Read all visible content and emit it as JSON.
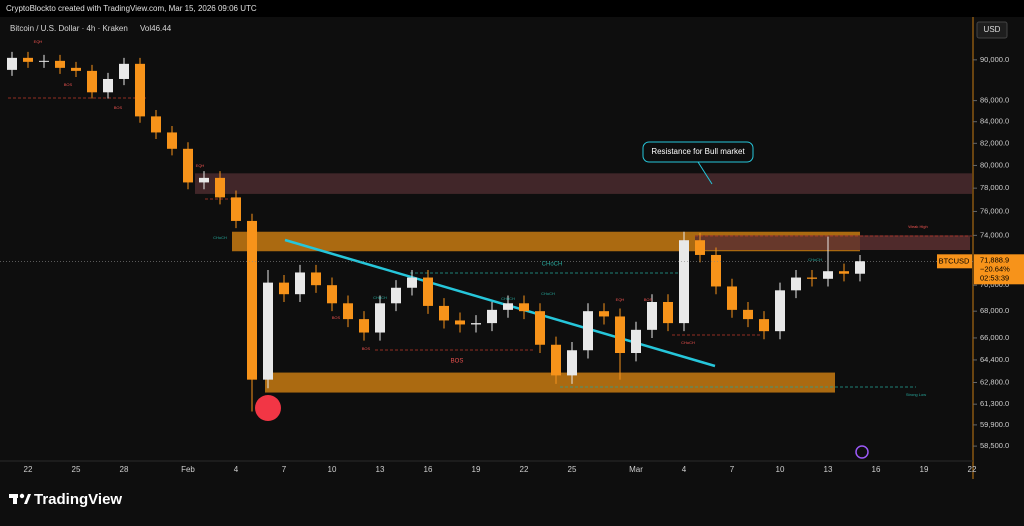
{
  "header": {
    "credit": "CryptoBlockto created with TradingView.com, Mar 15, 2026 09:06 UTC",
    "logo": "TradingView"
  },
  "chart_data": {
    "type": "candlestick",
    "title": "Bitcoin / U.S. Dollar · 4h · Kraken",
    "volume_label": "Vol46.44",
    "currency": "USD",
    "log_scale": true,
    "up_color": "#e8e8e8",
    "down_color": "#f7931a",
    "categories": [
      null,
      "22",
      null,
      null,
      "25",
      null,
      null,
      "28",
      null,
      null,
      null,
      "Feb",
      null,
      null,
      "4",
      null,
      null,
      "7",
      null,
      null,
      "10",
      null,
      null,
      "13",
      null,
      null,
      "16",
      null,
      null,
      "19",
      null,
      null,
      "22",
      null,
      null,
      "25",
      null,
      null,
      null,
      "Mar",
      null,
      null,
      "4",
      null,
      null,
      "7",
      null,
      null,
      "10",
      null,
      null,
      "13",
      null,
      null,
      "16",
      null,
      null,
      "19",
      null,
      null,
      "22"
    ],
    "open": [
      89000,
      90200,
      89800,
      89900,
      89200,
      88900,
      86800,
      88100,
      89600,
      84500,
      83000,
      81500,
      78500,
      78900,
      77200,
      75200,
      63000,
      70200,
      69300,
      71000,
      70000,
      68600,
      67400,
      66400,
      68600,
      69800,
      70600,
      68400,
      67300,
      67000,
      67100,
      68100,
      68600,
      68000,
      65500,
      63300,
      65100,
      68000,
      67600,
      64900,
      66600,
      68700,
      67100,
      73600,
      72400,
      69900,
      68100,
      67400,
      66500,
      69600,
      70600,
      70500,
      71100,
      70900,
      null,
      null,
      null,
      null,
      null,
      null,
      null
    ],
    "high": [
      90800,
      90800,
      90500,
      90500,
      89800,
      89500,
      88700,
      90200,
      90200,
      85100,
      83600,
      82100,
      79500,
      79500,
      77800,
      75800,
      71200,
      70800,
      71600,
      71600,
      70600,
      69200,
      68000,
      69200,
      70400,
      71200,
      71200,
      69000,
      67900,
      67700,
      68700,
      69200,
      69200,
      68600,
      66100,
      65700,
      68600,
      68600,
      68200,
      67200,
      69300,
      69300,
      74300,
      74200,
      73000,
      70500,
      68700,
      68000,
      70200,
      71200,
      71200,
      73900,
      71700,
      72400,
      null,
      null,
      null,
      null,
      null,
      null,
      null
    ],
    "low": [
      88400,
      89200,
      89200,
      88600,
      88300,
      86200,
      86200,
      87500,
      83900,
      82400,
      80900,
      77900,
      77900,
      76600,
      74600,
      60800,
      62400,
      68700,
      68700,
      69400,
      68000,
      66800,
      65800,
      65800,
      68000,
      69200,
      67800,
      66700,
      66400,
      66400,
      66500,
      67500,
      67400,
      64900,
      62700,
      62700,
      64500,
      67000,
      63000,
      64300,
      66000,
      66500,
      66500,
      71800,
      69300,
      67500,
      66800,
      65900,
      65900,
      69000,
      69900,
      69900,
      70300,
      70300,
      null,
      null,
      null,
      null,
      null,
      null,
      null
    ],
    "close": [
      90200,
      89800,
      89900,
      89200,
      88900,
      86800,
      88100,
      89600,
      84500,
      83000,
      81500,
      78500,
      78900,
      77200,
      75200,
      63000,
      70200,
      69300,
      71000,
      70000,
      68600,
      67400,
      66400,
      68600,
      69800,
      70600,
      68400,
      67300,
      67000,
      67100,
      68100,
      68600,
      68000,
      65500,
      63300,
      65100,
      68000,
      67600,
      64900,
      66600,
      68700,
      67100,
      73600,
      72400,
      69900,
      68100,
      67400,
      66500,
      69600,
      70600,
      70500,
      71100,
      70900,
      71900,
      null,
      null,
      null,
      null,
      null,
      null,
      null
    ],
    "ylim": [
      57600,
      94300
    ],
    "yticks": [
      {
        "value": 90000,
        "label": "90,000.0"
      },
      {
        "value": 86000,
        "label": "86,000.0"
      },
      {
        "value": 84000,
        "label": "84,000.0"
      },
      {
        "value": 82000,
        "label": "82,000.0"
      },
      {
        "value": 80000,
        "label": "80,000.0"
      },
      {
        "value": 78000,
        "label": "78,000.0"
      },
      {
        "value": 76000,
        "label": "76,000.0"
      },
      {
        "value": 74000,
        "label": "74,000.0"
      },
      {
        "value": 70000,
        "label": "70,000.0"
      },
      {
        "value": 68000,
        "label": "68,000.0"
      },
      {
        "value": 66000,
        "label": "66,000.0"
      },
      {
        "value": 64400,
        "label": "64,400.0"
      },
      {
        "value": 62800,
        "label": "62,800.0"
      },
      {
        "value": 61300,
        "label": "61,300.0"
      },
      {
        "value": 59900,
        "label": "59,900.0"
      },
      {
        "value": 58500,
        "label": "58,500.0"
      }
    ],
    "zones": [
      {
        "top": 79300,
        "bottom": 77500,
        "color": "#4a2a2e"
      },
      {
        "top": 74300,
        "bottom": 72700,
        "color": "#c77a12"
      },
      {
        "top": 74000,
        "bottom": 72800,
        "color": "#5a2f30"
      },
      {
        "top": 63500,
        "bottom": 62100,
        "color": "#c77a12"
      }
    ],
    "last_price": {
      "symbol": "BTCUSD",
      "value": 71888.9,
      "label": "71,888.9",
      "change": "−20.64%",
      "countdown": "02:53:39"
    },
    "annotations": [
      "Resistance for Bull market",
      "CHoCH",
      "BOS",
      "Weak High",
      "Strong Low",
      "EQH",
      "BOS",
      "BOS",
      "EQH",
      "CHoCH",
      "CHoCH",
      "CHoCH",
      "BOS",
      "CHoCH",
      "EQH",
      "BOS",
      "CHoCH",
      "CHoCH",
      "BOS"
    ]
  }
}
